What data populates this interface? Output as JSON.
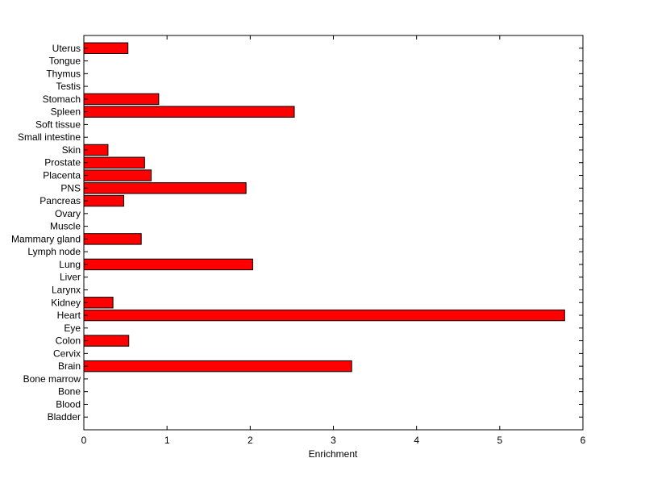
{
  "chart_data": {
    "type": "bar",
    "orientation": "horizontal",
    "title": "",
    "xlabel": "Enrichment",
    "ylabel": "",
    "xlim": [
      0,
      6
    ],
    "xticks": [
      0,
      1,
      2,
      3,
      4,
      5,
      6
    ],
    "grid": false,
    "bar_color": "#ff0000",
    "edge_color": "#000000",
    "categories": [
      "Bladder",
      "Blood",
      "Bone",
      "Bone marrow",
      "Brain",
      "Cervix",
      "Colon",
      "Eye",
      "Heart",
      "Kidney",
      "Larynx",
      "Liver",
      "Lung",
      "Lymph node",
      "Mammary gland",
      "Muscle",
      "Ovary",
      "Pancreas",
      "PNS",
      "Placenta",
      "Prostate",
      "Skin",
      "Small intestine",
      "Soft tissue",
      "Spleen",
      "Stomach",
      "Testis",
      "Thymus",
      "Tongue",
      "Uterus"
    ],
    "values": [
      0,
      0,
      0,
      0,
      3.22,
      0,
      0.54,
      0,
      5.78,
      0.35,
      0,
      0,
      2.03,
      0,
      0.69,
      0,
      0,
      0.48,
      1.95,
      0.81,
      0.73,
      0.29,
      0,
      0,
      2.53,
      0.9,
      0,
      0,
      0,
      0.53
    ]
  }
}
